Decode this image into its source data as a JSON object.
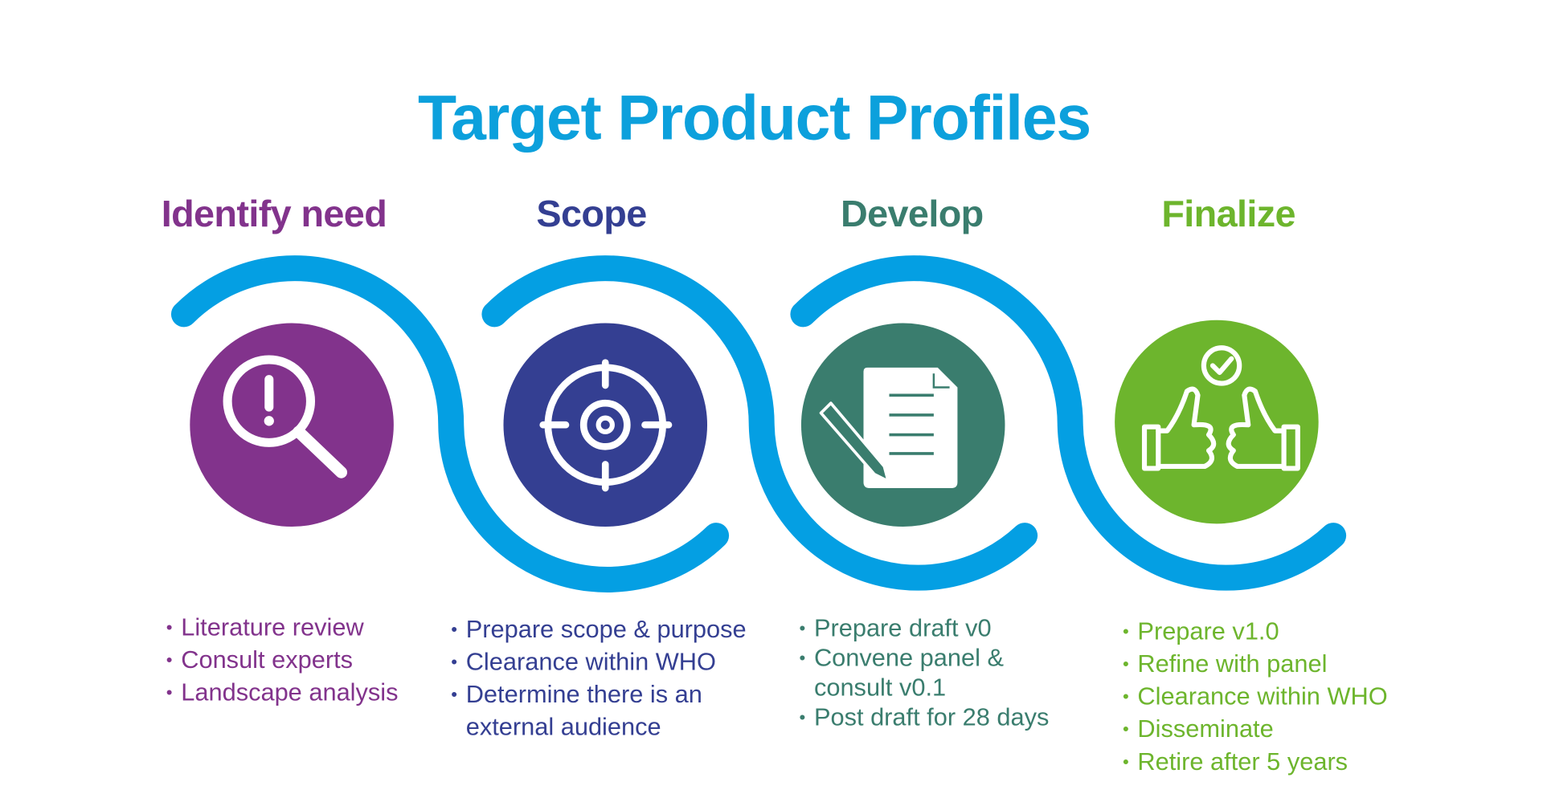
{
  "title": "Target Product Profiles",
  "colors": {
    "wave": "#049fe3",
    "title": "#0ca0dc",
    "identify": "#82338c",
    "scope": "#343f92",
    "develop": "#3a7d6e",
    "finalize": "#6db52d"
  },
  "stages": [
    {
      "heading": "Identify need",
      "icon": "magnifier-exclamation-icon",
      "items": [
        {
          "lines": [
            "Literature review"
          ]
        },
        {
          "lines": [
            "Consult experts"
          ]
        },
        {
          "lines": [
            "Landscape analysis"
          ]
        }
      ]
    },
    {
      "heading": "Scope",
      "icon": "target-crosshair-icon",
      "items": [
        {
          "lines": [
            "Prepare scope & purpose"
          ]
        },
        {
          "lines": [
            "Clearance within WHO"
          ]
        },
        {
          "lines": [
            "Determine there is an",
            "external audience"
          ]
        }
      ]
    },
    {
      "heading": "Develop",
      "icon": "document-pencil-icon",
      "items": [
        {
          "lines": [
            "Prepare draft v0"
          ]
        },
        {
          "lines": [
            "Convene panel &",
            "consult v0.1"
          ]
        },
        {
          "lines": [
            "Post draft for 28 days"
          ]
        }
      ]
    },
    {
      "heading": "Finalize",
      "icon": "thumbs-up-check-icon",
      "items": [
        {
          "lines": [
            "Prepare v1.0"
          ]
        },
        {
          "lines": [
            "Refine with panel"
          ]
        },
        {
          "lines": [
            "Clearance within WHO"
          ]
        },
        {
          "lines": [
            "Disseminate"
          ]
        },
        {
          "lines": [
            "Retire after 5 years"
          ]
        }
      ]
    }
  ]
}
